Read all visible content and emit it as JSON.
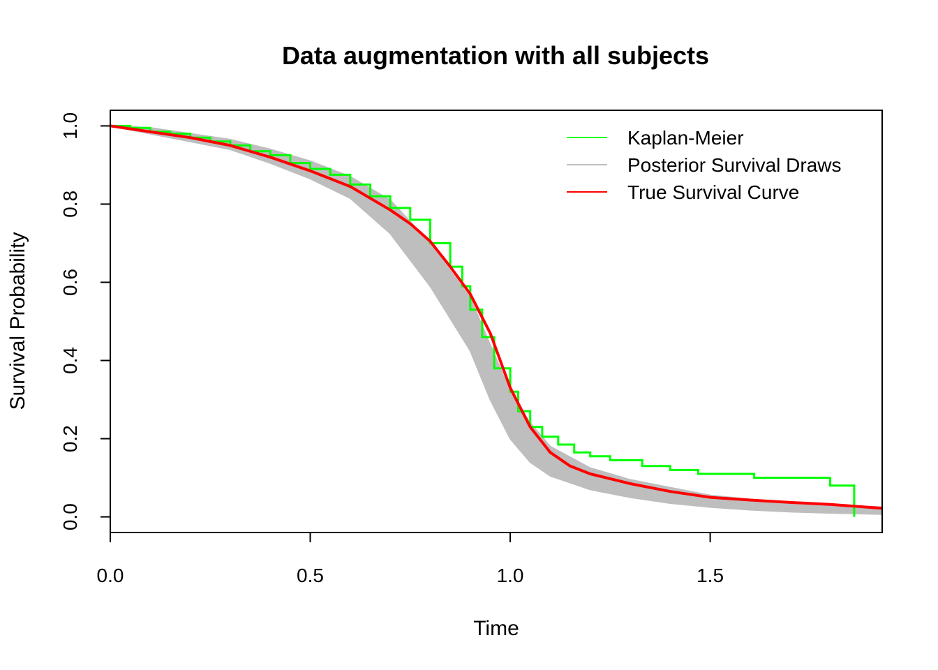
{
  "chart_data": {
    "type": "line",
    "title": "Data augmentation with all subjects",
    "xlabel": "Time",
    "ylabel": "Survival Probability",
    "xlim": [
      0,
      1.93
    ],
    "ylim": [
      -0.04,
      1.04
    ],
    "xticks": [
      0.0,
      0.5,
      1.0,
      1.5
    ],
    "xtick_labels": [
      "0.0",
      "0.5",
      "1.0",
      "1.5"
    ],
    "yticks": [
      0.0,
      0.2,
      0.4,
      0.6,
      0.8,
      1.0
    ],
    "ytick_labels": [
      "0.0",
      "0.2",
      "0.4",
      "0.6",
      "0.8",
      "1.0"
    ],
    "grid": false,
    "legend_position": "top-right",
    "legend": [
      {
        "label": "Kaplan-Meier",
        "color": "#00ff00"
      },
      {
        "label": "Posterior Survival Draws",
        "color": "#bebebe"
      },
      {
        "label": "True Survival Curve",
        "color": "#ff0000"
      }
    ],
    "series": [
      {
        "name": "Posterior Survival Draws",
        "color": "#bebebe",
        "kind": "band",
        "x": [
          0.0,
          0.1,
          0.2,
          0.3,
          0.4,
          0.5,
          0.6,
          0.7,
          0.8,
          0.9,
          0.95,
          1.0,
          1.05,
          1.1,
          1.2,
          1.3,
          1.4,
          1.5,
          1.6,
          1.7,
          1.8,
          1.93
        ],
        "lower": [
          1.0,
          0.98,
          0.96,
          0.94,
          0.905,
          0.865,
          0.815,
          0.725,
          0.59,
          0.425,
          0.3,
          0.2,
          0.14,
          0.105,
          0.07,
          0.05,
          0.035,
          0.025,
          0.018,
          0.013,
          0.01,
          0.007
        ],
        "upper": [
          1.0,
          0.995,
          0.98,
          0.965,
          0.94,
          0.91,
          0.87,
          0.81,
          0.7,
          0.56,
          0.44,
          0.32,
          0.24,
          0.18,
          0.125,
          0.095,
          0.075,
          0.055,
          0.045,
          0.037,
          0.03,
          0.025
        ]
      },
      {
        "name": "Kaplan-Meier",
        "color": "#00ff00",
        "kind": "step",
        "x": [
          0.0,
          0.05,
          0.1,
          0.15,
          0.2,
          0.25,
          0.3,
          0.35,
          0.4,
          0.45,
          0.5,
          0.55,
          0.6,
          0.65,
          0.7,
          0.75,
          0.8,
          0.85,
          0.88,
          0.9,
          0.93,
          0.96,
          1.0,
          1.02,
          1.05,
          1.08,
          1.12,
          1.16,
          1.2,
          1.25,
          1.33,
          1.4,
          1.47,
          1.61,
          1.8,
          1.86
        ],
        "y": [
          1.0,
          0.995,
          0.985,
          0.98,
          0.97,
          0.96,
          0.95,
          0.935,
          0.925,
          0.905,
          0.89,
          0.875,
          0.85,
          0.82,
          0.79,
          0.76,
          0.7,
          0.64,
          0.59,
          0.53,
          0.46,
          0.38,
          0.32,
          0.27,
          0.23,
          0.205,
          0.185,
          0.165,
          0.155,
          0.145,
          0.13,
          0.12,
          0.11,
          0.1,
          0.08,
          0.04
        ],
        "end_x": 1.86,
        "end_y": 0.0
      },
      {
        "name": "True Survival Curve",
        "color": "#ff0000",
        "kind": "line",
        "x": [
          0.0,
          0.1,
          0.2,
          0.3,
          0.4,
          0.5,
          0.6,
          0.7,
          0.75,
          0.8,
          0.85,
          0.9,
          0.95,
          1.0,
          1.05,
          1.1,
          1.15,
          1.2,
          1.3,
          1.4,
          1.5,
          1.6,
          1.7,
          1.8,
          1.93
        ],
        "y": [
          1.0,
          0.985,
          0.97,
          0.95,
          0.92,
          0.885,
          0.845,
          0.785,
          0.75,
          0.705,
          0.64,
          0.57,
          0.47,
          0.33,
          0.23,
          0.165,
          0.13,
          0.11,
          0.085,
          0.065,
          0.05,
          0.043,
          0.037,
          0.032,
          0.022
        ]
      }
    ]
  }
}
